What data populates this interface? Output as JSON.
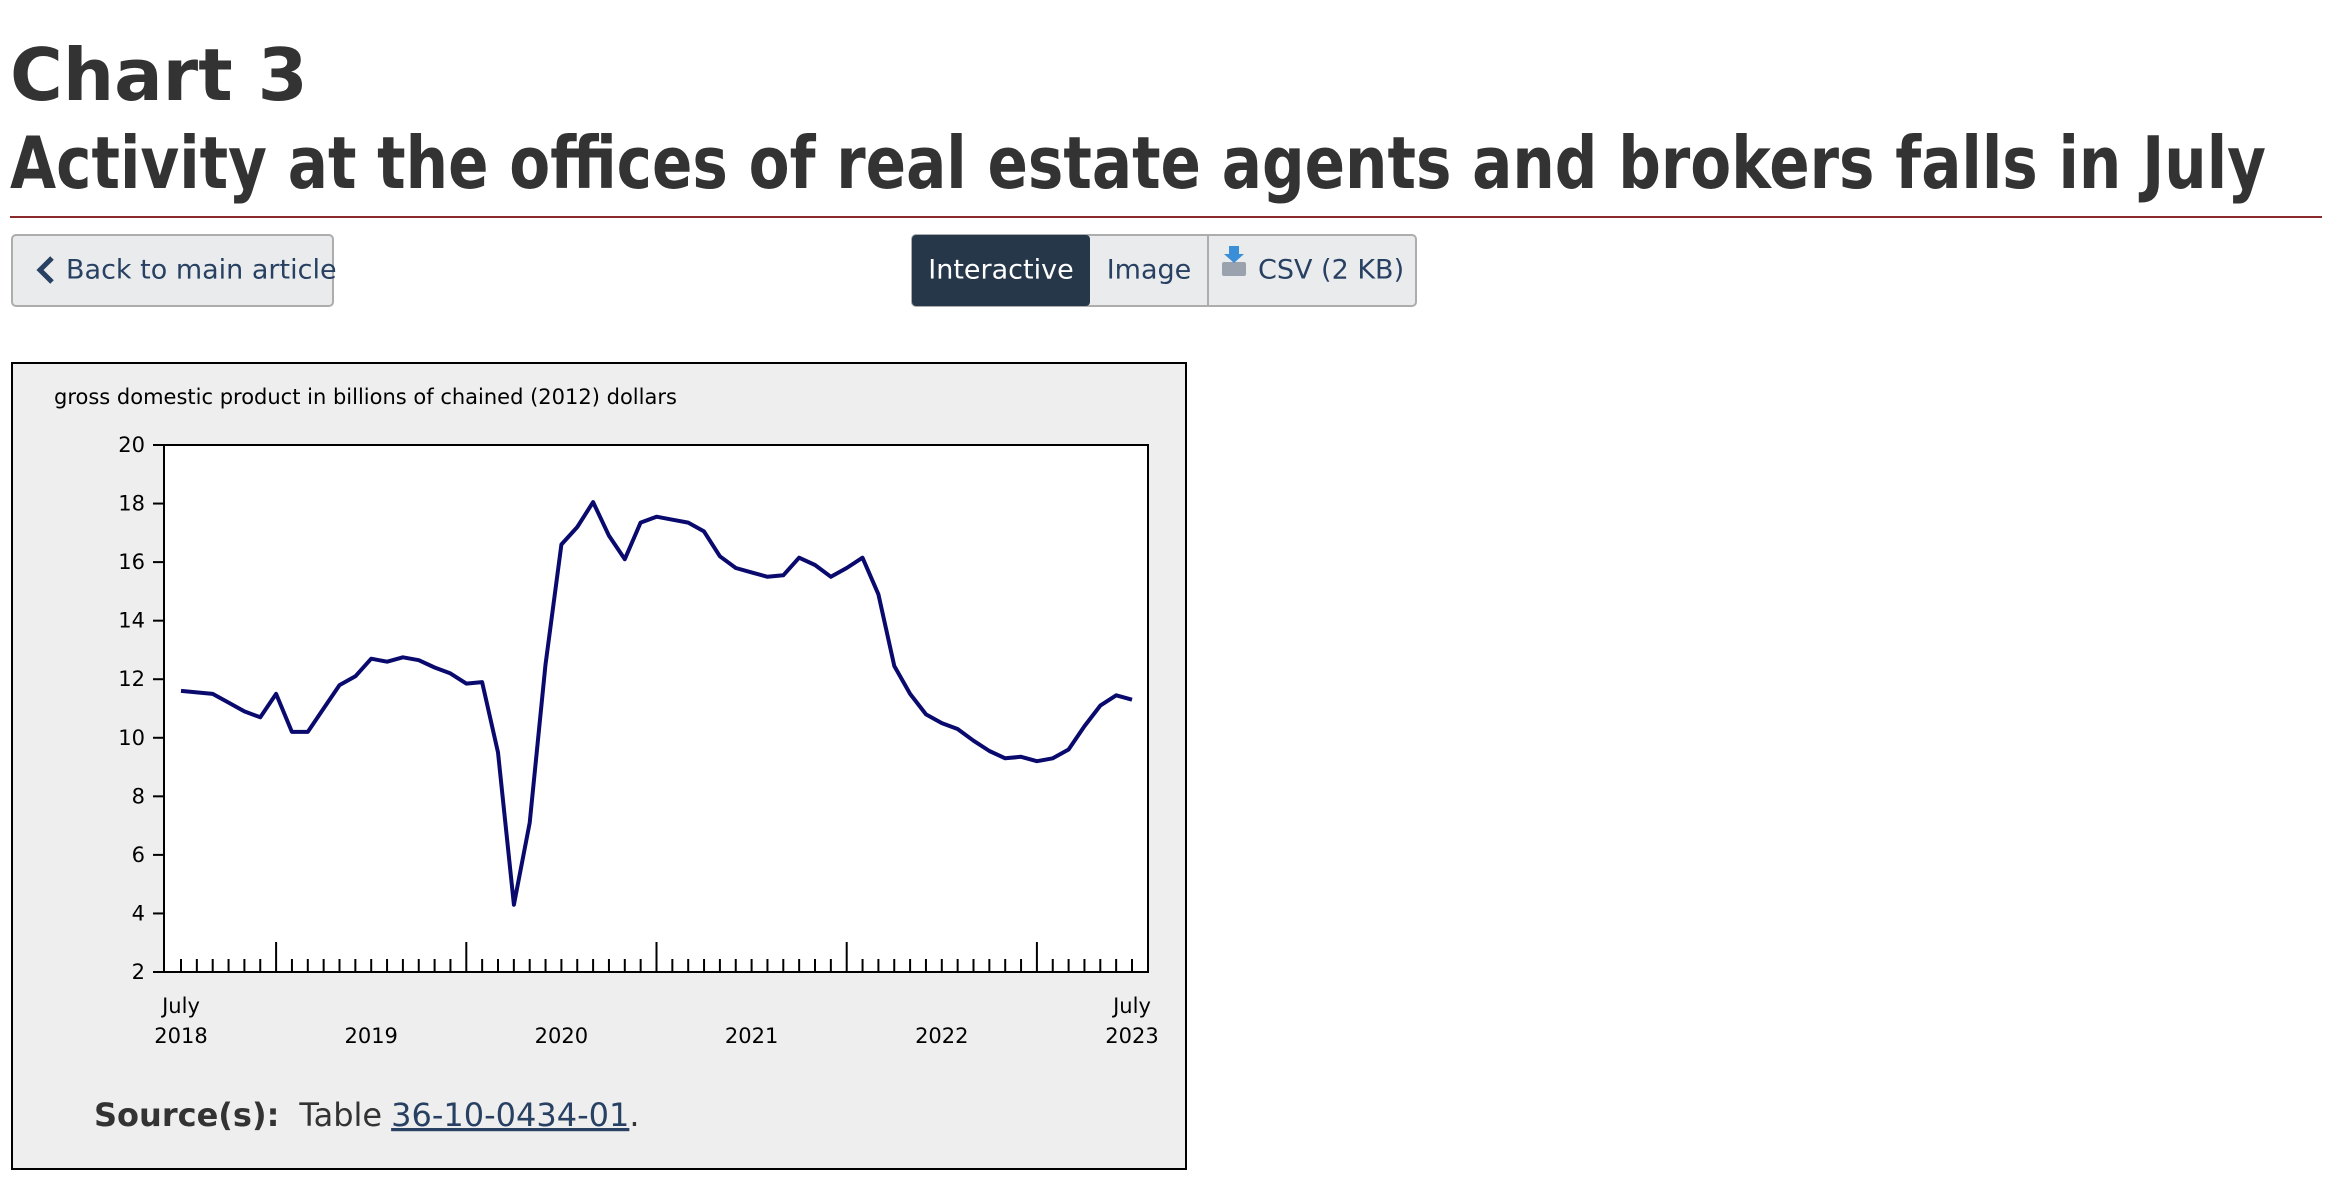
{
  "header": {
    "label": "Chart 3",
    "title": "Activity at the offices of real estate agents and brokers falls in July"
  },
  "nav": {
    "back": "Back to main article",
    "views": [
      "Interactive",
      "Image",
      "CSV (2 KB)"
    ]
  },
  "chart_data": {
    "type": "line",
    "y_axis_title": "gross domestic product in billions of chained (2012) dollars",
    "categories": [
      [
        "July",
        "2018"
      ],
      null,
      null,
      null,
      null,
      null,
      null,
      null,
      null,
      null,
      null,
      null,
      "2019",
      null,
      null,
      null,
      null,
      null,
      null,
      null,
      null,
      null,
      null,
      null,
      "2020",
      null,
      null,
      null,
      null,
      null,
      null,
      null,
      null,
      null,
      null,
      null,
      "2021",
      null,
      null,
      null,
      null,
      null,
      null,
      null,
      null,
      null,
      null,
      null,
      "2022",
      null,
      null,
      null,
      null,
      null,
      null,
      null,
      null,
      null,
      null,
      null,
      [
        "July",
        "2023"
      ]
    ],
    "values": [
      11.6,
      11.55,
      11.5,
      11.2,
      10.9,
      10.7,
      11.5,
      10.2,
      10.2,
      11.0,
      11.8,
      12.1,
      12.7,
      12.6,
      12.75,
      12.65,
      12.4,
      12.2,
      11.85,
      11.9,
      9.5,
      4.3,
      7.1,
      12.5,
      16.6,
      17.2,
      18.05,
      16.9,
      16.1,
      17.35,
      17.55,
      17.45,
      17.35,
      17.05,
      16.2,
      15.8,
      15.65,
      15.5,
      15.55,
      16.15,
      15.9,
      15.5,
      15.8,
      16.15,
      14.9,
      12.45,
      11.5,
      10.8,
      10.5,
      10.3,
      9.9,
      9.55,
      9.3,
      9.35,
      9.2,
      9.3,
      9.6,
      10.4,
      11.1,
      11.45,
      11.3
    ],
    "color": "#0a0a6e",
    "ylim": [
      2,
      20
    ],
    "yticks": [
      2,
      4,
      6,
      8,
      10,
      12,
      14,
      16,
      18,
      20
    ],
    "source": {
      "label": "Source(s):",
      "text": "Table",
      "link": "36-10-0434-01",
      "end": "."
    }
  }
}
